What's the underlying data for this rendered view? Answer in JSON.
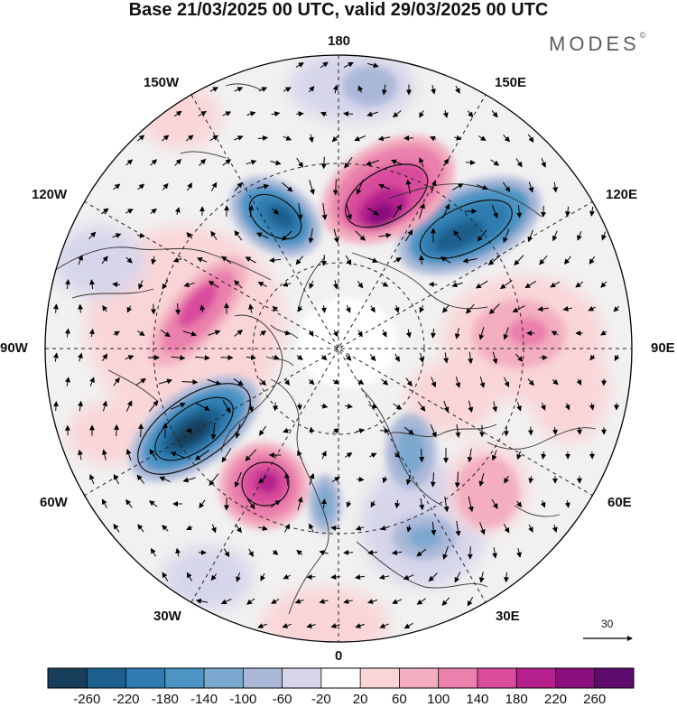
{
  "title": "Base 21/03/2025 00 UTC, valid 29/03/2025 00 UTC",
  "brand": "MODES",
  "brand_mark": "©",
  "longitude_labels": {
    "n180": "180",
    "e150": "150E",
    "e120": "120E",
    "e90": "90E",
    "e60": "60E",
    "e30": "30E",
    "zero": "0",
    "w30": "30W",
    "w60": "60W",
    "w90": "90W",
    "w120": "120W",
    "w150": "150W"
  },
  "reference_vector": {
    "value": "30"
  },
  "colorbar": {
    "labels": [
      "-260",
      "-220",
      "-180",
      "-140",
      "-100",
      "-60",
      "-20",
      "20",
      "60",
      "100",
      "140",
      "180",
      "220",
      "260"
    ],
    "colors": [
      "#173f5c",
      "#1d5f8c",
      "#2d7bb0",
      "#4b94c4",
      "#7ba8cf",
      "#aab8d8",
      "#d6d5ea",
      "#ffffff",
      "#f9d5d7",
      "#f3aec0",
      "#ea80ac",
      "#d94c9c",
      "#b5208d",
      "#8a0e7d",
      "#5e0b6e"
    ]
  },
  "anomaly_cells": [
    {
      "sign": "negative",
      "magnitude": "-260"
    },
    {
      "sign": "negative",
      "magnitude": "-220"
    },
    {
      "sign": "positive",
      "magnitude": "220"
    },
    {
      "sign": "positive",
      "magnitude": "260"
    },
    {
      "sign": "negative",
      "magnitude": "-220"
    },
    {
      "sign": "positive",
      "magnitude": "180"
    },
    {
      "sign": "positive",
      "magnitude": "140"
    },
    {
      "sign": "negative",
      "magnitude": "-140"
    },
    {
      "sign": "negative",
      "magnitude": "-100"
    },
    {
      "sign": "positive",
      "magnitude": "100"
    }
  ]
}
